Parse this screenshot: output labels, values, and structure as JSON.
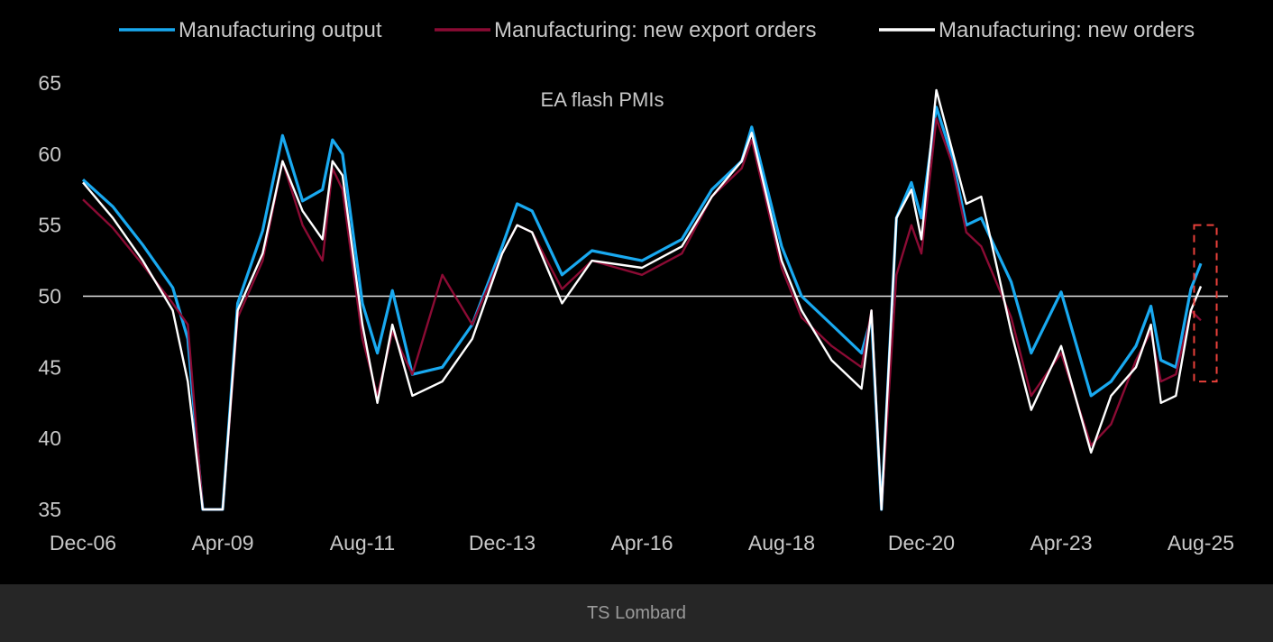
{
  "footer": {
    "source": "TS Lombard"
  },
  "chart_data": {
    "type": "line",
    "title": "EA flash PMIs",
    "xlabel": "",
    "ylabel": "",
    "ylim": [
      35,
      65
    ],
    "yticks": [
      35,
      40,
      45,
      50,
      55,
      60,
      65
    ],
    "xticks": [
      "Dec-06",
      "Apr-09",
      "Aug-11",
      "Dec-13",
      "Apr-16",
      "Aug-18",
      "Dec-20",
      "Apr-23",
      "Aug-25"
    ],
    "reference_line": 50,
    "legend_position": "top",
    "highlight_box": {
      "x_from": "Jul-25",
      "x_to": "Sep-25",
      "y_from": 44,
      "y_to": 55,
      "color": "#e8403a"
    },
    "series": [
      {
        "name": "Manufacturing output",
        "color": "#19a9f0",
        "points": [
          [
            "Dec-06",
            58.2
          ],
          [
            "Jun-07",
            56.3
          ],
          [
            "Dec-07",
            53.6
          ],
          [
            "Jun-08",
            50.6
          ],
          [
            "Sep-08",
            47.0
          ],
          [
            "Dec-08",
            35.0
          ],
          [
            "Apr-09",
            35.0
          ],
          [
            "Jul-09",
            49.5
          ],
          [
            "Dec-09",
            54.6
          ],
          [
            "Apr-10",
            61.3
          ],
          [
            "Aug-10",
            56.7
          ],
          [
            "Dec-10",
            57.5
          ],
          [
            "Feb-11",
            61.0
          ],
          [
            "Apr-11",
            60.0
          ],
          [
            "Aug-11",
            49.5
          ],
          [
            "Nov-11",
            46.0
          ],
          [
            "Feb-12",
            50.4
          ],
          [
            "Jun-12",
            44.5
          ],
          [
            "Dec-12",
            45.0
          ],
          [
            "Jun-13",
            48.0
          ],
          [
            "Dec-13",
            53.5
          ],
          [
            "Mar-14",
            56.5
          ],
          [
            "Jun-14",
            56.0
          ],
          [
            "Dec-14",
            51.5
          ],
          [
            "Jun-15",
            53.2
          ],
          [
            "Apr-16",
            52.5
          ],
          [
            "Dec-16",
            54.0
          ],
          [
            "Jun-17",
            57.5
          ],
          [
            "Dec-17",
            59.5
          ],
          [
            "Feb-18",
            61.9
          ],
          [
            "Aug-18",
            53.5
          ],
          [
            "Dec-18",
            50.0
          ],
          [
            "Jun-19",
            48.0
          ],
          [
            "Dec-19",
            46.0
          ],
          [
            "Feb-20",
            48.5
          ],
          [
            "Apr-20",
            35.0
          ],
          [
            "Jul-20",
            55.5
          ],
          [
            "Oct-20",
            58.0
          ],
          [
            "Dec-20",
            55.5
          ],
          [
            "Mar-21",
            63.3
          ],
          [
            "Jun-21",
            60.0
          ],
          [
            "Sep-21",
            55.0
          ],
          [
            "Dec-21",
            55.5
          ],
          [
            "Jun-22",
            51.0
          ],
          [
            "Oct-22",
            46.0
          ],
          [
            "Apr-23",
            50.3
          ],
          [
            "Oct-23",
            43.0
          ],
          [
            "Feb-24",
            44.0
          ],
          [
            "Jul-24",
            46.5
          ],
          [
            "Oct-24",
            49.3
          ],
          [
            "Dec-24",
            45.5
          ],
          [
            "Mar-25",
            45.0
          ],
          [
            "Jun-25",
            50.5
          ],
          [
            "Aug-25",
            52.3
          ]
        ]
      },
      {
        "name": "Manufacturing: new export orders",
        "color": "#8b0b34",
        "points": [
          [
            "Dec-06",
            56.8
          ],
          [
            "Jun-07",
            54.8
          ],
          [
            "Dec-07",
            52.2
          ],
          [
            "Jun-08",
            49.5
          ],
          [
            "Sep-08",
            48.0
          ],
          [
            "Dec-08",
            35.0
          ],
          [
            "Apr-09",
            35.0
          ],
          [
            "Jul-09",
            48.5
          ],
          [
            "Dec-09",
            52.5
          ],
          [
            "Apr-10",
            59.5
          ],
          [
            "Aug-10",
            55.0
          ],
          [
            "Dec-10",
            52.5
          ],
          [
            "Feb-11",
            59.0
          ],
          [
            "Apr-11",
            57.5
          ],
          [
            "Aug-11",
            47.0
          ],
          [
            "Nov-11",
            43.0
          ],
          [
            "Feb-12",
            47.5
          ],
          [
            "Jun-12",
            44.5
          ],
          [
            "Dec-12",
            51.5
          ],
          [
            "Jun-13",
            48.0
          ],
          [
            "Dec-13",
            53.0
          ],
          [
            "Mar-14",
            55.0
          ],
          [
            "Jun-14",
            54.5
          ],
          [
            "Dec-14",
            50.5
          ],
          [
            "Jun-15",
            52.5
          ],
          [
            "Apr-16",
            51.5
          ],
          [
            "Dec-16",
            53.0
          ],
          [
            "Jun-17",
            57.0
          ],
          [
            "Dec-17",
            59.0
          ],
          [
            "Feb-18",
            61.0
          ],
          [
            "Aug-18",
            52.0
          ],
          [
            "Dec-18",
            48.5
          ],
          [
            "Jun-19",
            46.5
          ],
          [
            "Dec-19",
            45.0
          ],
          [
            "Feb-20",
            49.0
          ],
          [
            "Apr-20",
            35.0
          ],
          [
            "Jul-20",
            51.5
          ],
          [
            "Oct-20",
            55.0
          ],
          [
            "Dec-20",
            53.0
          ],
          [
            "Mar-21",
            62.5
          ],
          [
            "Jun-21",
            59.5
          ],
          [
            "Sep-21",
            54.5
          ],
          [
            "Dec-21",
            53.5
          ],
          [
            "Jun-22",
            48.5
          ],
          [
            "Oct-22",
            43.0
          ],
          [
            "Apr-23",
            46.0
          ],
          [
            "Oct-23",
            39.5
          ],
          [
            "Feb-24",
            41.0
          ],
          [
            "Jul-24",
            45.5
          ],
          [
            "Oct-24",
            47.5
          ],
          [
            "Dec-24",
            44.0
          ],
          [
            "Mar-25",
            44.5
          ],
          [
            "Jun-25",
            49.0
          ],
          [
            "Aug-25",
            48.3
          ]
        ]
      },
      {
        "name": "Manufacturing: new orders",
        "color": "#ffffff",
        "points": [
          [
            "Dec-06",
            58.0
          ],
          [
            "Jun-07",
            55.5
          ],
          [
            "Dec-07",
            52.5
          ],
          [
            "Jun-08",
            49.0
          ],
          [
            "Sep-08",
            44.0
          ],
          [
            "Dec-08",
            35.0
          ],
          [
            "Apr-09",
            35.0
          ],
          [
            "Jul-09",
            49.0
          ],
          [
            "Dec-09",
            53.0
          ],
          [
            "Apr-10",
            59.5
          ],
          [
            "Aug-10",
            56.0
          ],
          [
            "Dec-10",
            54.0
          ],
          [
            "Feb-11",
            59.5
          ],
          [
            "Apr-11",
            58.5
          ],
          [
            "Aug-11",
            48.0
          ],
          [
            "Nov-11",
            42.5
          ],
          [
            "Feb-12",
            48.0
          ],
          [
            "Jun-12",
            43.0
          ],
          [
            "Dec-12",
            44.0
          ],
          [
            "Jun-13",
            47.0
          ],
          [
            "Dec-13",
            53.0
          ],
          [
            "Mar-14",
            55.0
          ],
          [
            "Jun-14",
            54.5
          ],
          [
            "Dec-14",
            49.5
          ],
          [
            "Jun-15",
            52.5
          ],
          [
            "Apr-16",
            52.0
          ],
          [
            "Dec-16",
            53.5
          ],
          [
            "Jun-17",
            57.0
          ],
          [
            "Dec-17",
            59.5
          ],
          [
            "Feb-18",
            61.5
          ],
          [
            "Aug-18",
            52.5
          ],
          [
            "Dec-18",
            49.0
          ],
          [
            "Jun-19",
            45.5
          ],
          [
            "Dec-19",
            43.5
          ],
          [
            "Feb-20",
            49.0
          ],
          [
            "Apr-20",
            35.0
          ],
          [
            "Jul-20",
            55.5
          ],
          [
            "Oct-20",
            57.5
          ],
          [
            "Dec-20",
            54.0
          ],
          [
            "Mar-21",
            64.5
          ],
          [
            "Jun-21",
            60.5
          ],
          [
            "Sep-21",
            56.5
          ],
          [
            "Dec-21",
            57.0
          ],
          [
            "Jun-22",
            47.5
          ],
          [
            "Oct-22",
            42.0
          ],
          [
            "Apr-23",
            46.5
          ],
          [
            "Oct-23",
            39.0
          ],
          [
            "Feb-24",
            43.0
          ],
          [
            "Jul-24",
            45.0
          ],
          [
            "Oct-24",
            48.0
          ],
          [
            "Dec-24",
            42.5
          ],
          [
            "Mar-25",
            43.0
          ],
          [
            "Jun-25",
            49.0
          ],
          [
            "Aug-25",
            50.7
          ]
        ]
      }
    ]
  }
}
